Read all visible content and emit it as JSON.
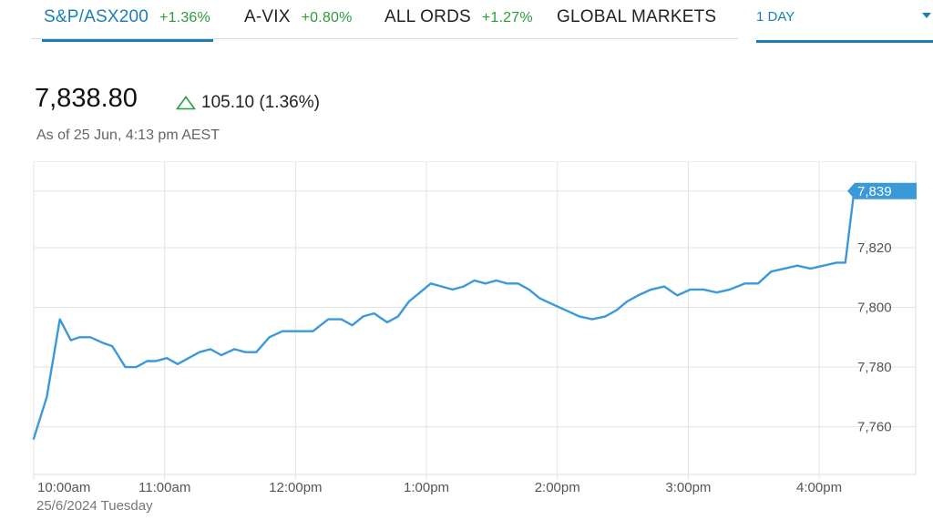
{
  "tabs": [
    {
      "name": "S&P/ASX200",
      "change": "+1.36%",
      "active": true
    },
    {
      "name": "A-VIX",
      "change": "+0.80%",
      "active": false
    },
    {
      "name": "ALL ORDS",
      "change": "+1.27%",
      "active": false
    },
    {
      "name": "GLOBAL MARKETS",
      "change": "",
      "active": false
    }
  ],
  "range_selector": {
    "label": "1 DAY",
    "icon": "chevron-down-icon"
  },
  "quote": {
    "price": "7,838.80",
    "change": "105.10 (1.36%)",
    "change_icon": "triangle-up-outline-icon",
    "as_of": "As of 25 Jun, 4:13 pm AEST"
  },
  "colors": {
    "accent": "#1a7fb5",
    "positive": "#2a9d3a",
    "line": "#3a9ad9",
    "grid": "#e3e3e3"
  },
  "chart_data": {
    "type": "line",
    "date_label": "25/6/2024 Tuesday",
    "x_ticks": [
      "10:00am",
      "11:00am",
      "12:00pm",
      "1:00pm",
      "2:00pm",
      "3:00pm",
      "4:00pm"
    ],
    "y_ticks": [
      7760,
      7780,
      7800,
      7820
    ],
    "y_tick_labels": [
      "7,760",
      "7,780",
      "7,800",
      "7,820"
    ],
    "ylim": [
      7744,
      7849
    ],
    "x_minutes_range": [
      0,
      375
    ],
    "last_value_label": "7,839",
    "grid": true,
    "series": [
      {
        "x": [
          0,
          6,
          12,
          17,
          21,
          26,
          32,
          36,
          42,
          47,
          52,
          56,
          61,
          66,
          71,
          76,
          81,
          86,
          92,
          97,
          102,
          108,
          114,
          121,
          128,
          135,
          141,
          146,
          151,
          156,
          162,
          167,
          172,
          177,
          182,
          187,
          192,
          197,
          202,
          207,
          212,
          217,
          222,
          227,
          232,
          238,
          244,
          250,
          256,
          262,
          267,
          272,
          277,
          283,
          289,
          295,
          301,
          307,
          313,
          319,
          326,
          332,
          338,
          344,
          350,
          356,
          362,
          368,
          372,
          376
        ],
        "y": [
          7756,
          7770,
          7796,
          7789,
          7790,
          7790,
          7788,
          7787,
          7780,
          7780,
          7782,
          7782,
          7783,
          7781,
          7783,
          7785,
          7786,
          7784,
          7786,
          7785,
          7785,
          7790,
          7792,
          7792,
          7792,
          7796,
          7796,
          7794,
          7797,
          7798,
          7795,
          7797,
          7802,
          7805,
          7808,
          7807,
          7806,
          7807,
          7809,
          7808,
          7809,
          7808,
          7808,
          7806,
          7803,
          7801,
          7799,
          7797,
          7796,
          7797,
          7799,
          7802,
          7804,
          7806,
          7807,
          7804,
          7806,
          7806,
          7805,
          7806,
          7808,
          7808,
          7812,
          7813,
          7814,
          7813,
          7814,
          7815,
          7815,
          7839
        ]
      }
    ]
  }
}
